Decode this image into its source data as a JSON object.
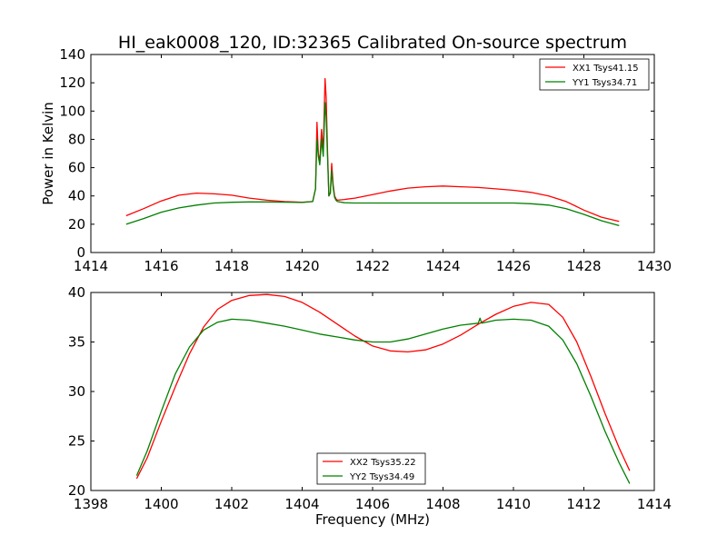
{
  "figure_title": "HI_eak0008_120, ID:32365 Calibrated On-source spectrum",
  "chart_data": [
    {
      "type": "line",
      "title": "HI_eak0008_120, ID:32365 Calibrated On-source spectrum",
      "xlabel": "",
      "ylabel": "Power in Kelvin",
      "xlim": [
        1414,
        1430
      ],
      "ylim": [
        0,
        140
      ],
      "xticks": [
        "1414",
        "1416",
        "1418",
        "1420",
        "1422",
        "1424",
        "1426",
        "1428",
        "1430"
      ],
      "yticks": [
        "0",
        "20",
        "40",
        "60",
        "80",
        "100",
        "120",
        "140"
      ],
      "grid": false,
      "legend": "top-right",
      "series": [
        {
          "name": "XX1 Tsys41.15",
          "color": "#ff0000",
          "x": [
            1415.0,
            1415.5,
            1416.0,
            1416.5,
            1417.0,
            1417.5,
            1418.0,
            1418.5,
            1419.0,
            1419.5,
            1420.0,
            1420.3,
            1420.38,
            1420.42,
            1420.46,
            1420.5,
            1420.55,
            1420.6,
            1420.65,
            1420.68,
            1420.72,
            1420.76,
            1420.8,
            1420.84,
            1420.88,
            1420.92,
            1420.96,
            1421.0,
            1421.2,
            1421.5,
            1422.0,
            1422.5,
            1423.0,
            1423.5,
            1424.0,
            1424.5,
            1425.0,
            1425.5,
            1426.0,
            1426.5,
            1427.0,
            1427.5,
            1428.0,
            1428.5,
            1429.0
          ],
          "y": [
            26,
            31,
            36.5,
            40.5,
            42,
            41.5,
            40.5,
            38.5,
            37,
            36,
            35.5,
            36,
            45,
            92,
            70,
            64,
            87,
            72,
            123,
            110,
            72,
            40,
            42,
            63,
            48,
            40,
            38,
            37,
            37.5,
            38.5,
            41,
            43.5,
            45.5,
            46.5,
            47,
            46.5,
            46,
            45,
            44,
            42.5,
            40,
            36,
            30,
            25,
            22
          ]
        },
        {
          "name": "YY1 Tsys34.71",
          "color": "#008000",
          "x": [
            1415.0,
            1415.5,
            1416.0,
            1416.5,
            1417.0,
            1417.5,
            1418.0,
            1418.5,
            1419.0,
            1419.5,
            1420.0,
            1420.3,
            1420.38,
            1420.42,
            1420.46,
            1420.5,
            1420.55,
            1420.6,
            1420.65,
            1420.68,
            1420.72,
            1420.76,
            1420.8,
            1420.84,
            1420.88,
            1420.92,
            1420.96,
            1421.0,
            1421.2,
            1421.5,
            1422.0,
            1422.5,
            1423.0,
            1423.5,
            1424.0,
            1424.5,
            1425.0,
            1425.5,
            1426.0,
            1426.5,
            1427.0,
            1427.5,
            1428.0,
            1428.5,
            1429.0
          ],
          "y": [
            20,
            24,
            28.5,
            31.5,
            33.5,
            35,
            35.5,
            35.8,
            35.8,
            35.6,
            35.4,
            36,
            45,
            80,
            68,
            62,
            80,
            68,
            106,
            96,
            68,
            40,
            42,
            58,
            46,
            39,
            37,
            36,
            35.2,
            35,
            35,
            35,
            35,
            35,
            35,
            35,
            35,
            35,
            35,
            34.5,
            33.5,
            31,
            27,
            22.5,
            19
          ]
        }
      ]
    },
    {
      "type": "line",
      "title": "",
      "xlabel": "Frequency (MHz)",
      "ylabel": "",
      "xlim": [
        1398,
        1414
      ],
      "ylim": [
        20,
        40
      ],
      "xticks": [
        "1398",
        "1400",
        "1402",
        "1404",
        "1406",
        "1408",
        "1410",
        "1412",
        "1414"
      ],
      "yticks": [
        "20",
        "25",
        "30",
        "35",
        "40"
      ],
      "grid": false,
      "legend": "lower-center",
      "series": [
        {
          "name": "XX2 Tsys35.22",
          "color": "#ff0000",
          "x": [
            1399.3,
            1399.6,
            1400.0,
            1400.4,
            1400.8,
            1401.2,
            1401.6,
            1402.0,
            1402.5,
            1403.0,
            1403.5,
            1404.0,
            1404.5,
            1405.0,
            1405.5,
            1406.0,
            1406.5,
            1407.0,
            1407.5,
            1408.0,
            1408.5,
            1409.0,
            1409.5,
            1410.0,
            1410.5,
            1411.0,
            1411.4,
            1411.8,
            1412.2,
            1412.6,
            1413.0,
            1413.3
          ],
          "y": [
            21.2,
            23.3,
            27,
            30.5,
            33.8,
            36.5,
            38.3,
            39.2,
            39.7,
            39.8,
            39.6,
            39,
            38,
            36.8,
            35.6,
            34.6,
            34.1,
            34,
            34.2,
            34.8,
            35.7,
            36.8,
            37.8,
            38.6,
            39,
            38.8,
            37.5,
            35,
            31.5,
            27.8,
            24.3,
            22
          ]
        },
        {
          "name": "YY2 Tsys34.49",
          "color": "#008000",
          "x": [
            1399.3,
            1399.6,
            1400.0,
            1400.4,
            1400.8,
            1401.2,
            1401.6,
            1402.0,
            1402.5,
            1403.0,
            1403.5,
            1404.0,
            1404.5,
            1405.0,
            1405.5,
            1406.0,
            1406.5,
            1407.0,
            1407.5,
            1408.0,
            1408.5,
            1409.0,
            1409.05,
            1409.1,
            1409.5,
            1410.0,
            1410.5,
            1411.0,
            1411.4,
            1411.8,
            1412.2,
            1412.6,
            1413.0,
            1413.3
          ],
          "y": [
            21.5,
            24,
            28,
            31.8,
            34.5,
            36.2,
            37,
            37.3,
            37.2,
            36.9,
            36.6,
            36.2,
            35.8,
            35.5,
            35.2,
            35,
            35,
            35.3,
            35.8,
            36.3,
            36.7,
            36.9,
            37.4,
            36.9,
            37.2,
            37.3,
            37.2,
            36.6,
            35.2,
            32.8,
            29.5,
            26,
            22.8,
            20.7
          ]
        }
      ]
    }
  ]
}
